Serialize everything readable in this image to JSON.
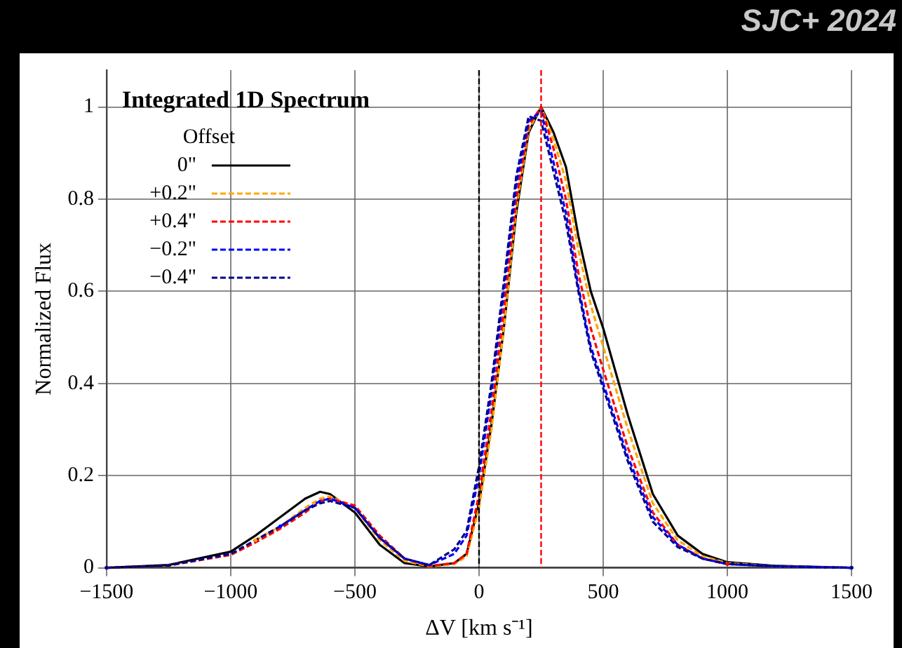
{
  "chart_data": {
    "type": "line",
    "title": "Integrated 1D Spectrum",
    "xlabel": "ΔV [km s⁻¹]",
    "ylabel": "Normalized Flux",
    "legend_title": "Offset",
    "legend": "top left",
    "grid": true,
    "marker": "none",
    "x": [
      -1500,
      -1250,
      -1000,
      -900,
      -800,
      -700,
      -640,
      -600,
      -500,
      -400,
      -300,
      -200,
      -100,
      -50,
      0,
      50,
      100,
      150,
      200,
      250,
      300,
      350,
      400,
      450,
      500,
      600,
      700,
      800,
      900,
      1000,
      1200,
      1500
    ],
    "series": [
      {
        "name": "0\"",
        "color": "#000000",
        "line_style": "solid",
        "values": [
          0,
          0.006,
          0.035,
          0.07,
          0.11,
          0.15,
          0.165,
          0.16,
          0.12,
          0.05,
          0.01,
          0.003,
          0.01,
          0.03,
          0.14,
          0.31,
          0.52,
          0.77,
          0.945,
          1.0,
          0.945,
          0.87,
          0.72,
          0.6,
          0.52,
          0.33,
          0.16,
          0.07,
          0.03,
          0.012,
          0.004,
          0
        ]
      },
      {
        "name": "+0.2\"",
        "color": "#ffa500",
        "line_style": "dashed",
        "values": [
          null,
          null,
          null,
          0.06,
          0.09,
          0.13,
          0.15,
          0.155,
          0.13,
          0.06,
          0.015,
          0.003,
          0.008,
          0.025,
          0.13,
          0.3,
          0.52,
          0.78,
          0.95,
          1.0,
          0.93,
          0.84,
          0.69,
          0.57,
          0.48,
          0.3,
          0.14,
          0.06,
          0.025,
          0.01,
          0.003,
          0
        ]
      },
      {
        "name": "+0.4\"",
        "color": "#ff0000",
        "line_style": "dashed",
        "values": [
          0,
          0.005,
          0.028,
          0.055,
          0.085,
          0.12,
          0.145,
          0.15,
          0.135,
          0.07,
          0.02,
          0.004,
          0.01,
          0.03,
          0.16,
          0.34,
          0.56,
          0.8,
          0.96,
          1.0,
          0.91,
          0.8,
          0.64,
          0.52,
          0.43,
          0.26,
          0.12,
          0.05,
          0.02,
          0.008,
          null,
          null
        ]
      },
      {
        "name": "−0.2\"",
        "color": "#0000ff",
        "line_style": "dashed",
        "values": [
          null,
          null,
          null,
          null,
          0.09,
          0.125,
          0.145,
          0.15,
          0.13,
          0.065,
          0.02,
          0.006,
          0.03,
          0.07,
          0.2,
          0.38,
          0.6,
          0.83,
          0.97,
          0.99,
          0.88,
          0.77,
          0.61,
          0.48,
          0.4,
          0.24,
          0.11,
          0.05,
          0.02,
          0.008,
          0.003,
          0
        ]
      },
      {
        "name": "−0.4\"",
        "color": "#00008b",
        "line_style": "dashed",
        "values": [
          0,
          0.005,
          0.03,
          0.06,
          0.09,
          0.125,
          0.14,
          0.145,
          0.13,
          0.065,
          0.02,
          0.006,
          0.04,
          0.08,
          0.22,
          0.4,
          0.62,
          0.85,
          0.98,
          0.97,
          0.86,
          0.75,
          0.6,
          0.47,
          0.39,
          0.23,
          0.1,
          0.045,
          0.02,
          0.008,
          0.003,
          0
        ]
      }
    ],
    "xlim": [
      -1500,
      1500
    ],
    "xticks": [
      {
        "value": -1500,
        "label": "−1500"
      },
      {
        "value": -1000,
        "label": "−1000"
      },
      {
        "value": -500,
        "label": "−500"
      },
      0,
      500,
      1000,
      1500
    ],
    "ylim": [
      0,
      1.08
    ],
    "yticks": [
      0,
      0.2,
      0.4,
      0.6,
      0.8,
      1
    ],
    "ref_lines": [
      {
        "axis": "x",
        "value": 0,
        "color": "#000000",
        "line_style": "dashed"
      },
      {
        "axis": "x",
        "value": 250,
        "color": "#ff0000",
        "line_style": "dashed"
      }
    ],
    "annotations": [
      "SJC+ 2024"
    ]
  }
}
